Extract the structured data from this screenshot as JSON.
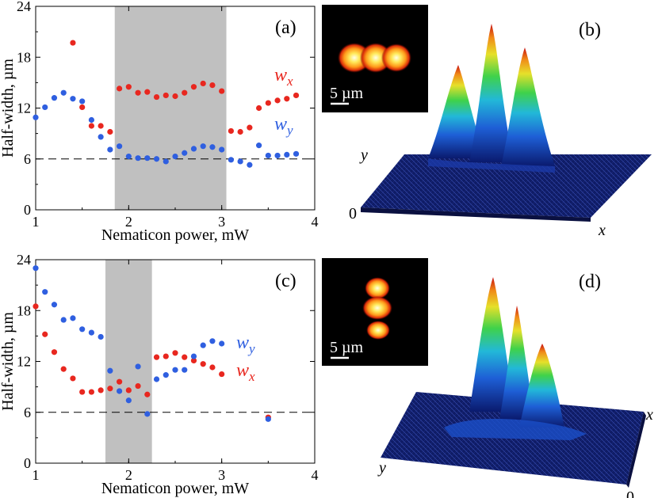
{
  "figure": {
    "panels": [
      "(a)",
      "(b)",
      "(c)",
      "(d)"
    ],
    "scale_bar_label": "5 µm",
    "surface_labels": {
      "b": {
        "x": "x",
        "y": "y",
        "zero": "0"
      },
      "d": {
        "x": "x",
        "y": "y",
        "zero": "0"
      }
    }
  },
  "colors": {
    "wx": "#e8271f",
    "wy": "#2f5fe0",
    "shade": "#c0c0c0",
    "dashed": "#000000"
  },
  "chart_data": [
    {
      "id": "a",
      "type": "scatter",
      "panel_label": "(a)",
      "xlabel": "Nematicon power, mW",
      "ylabel": "Half-width, µm",
      "xlim": [
        1,
        4
      ],
      "ylim": [
        0,
        24
      ],
      "xticks": [
        1,
        2,
        3,
        4
      ],
      "yticks": [
        0,
        6,
        12,
        18,
        24
      ],
      "reference_line_y": 6,
      "shaded_region_x": [
        1.85,
        3.05
      ],
      "series": [
        {
          "name": "wx",
          "label_main": "w",
          "label_sub": "x",
          "color": "#e8271f",
          "x": [
            1.4,
            1.5,
            1.6,
            1.7,
            1.8,
            1.9,
            2.0,
            2.1,
            2.2,
            2.3,
            2.4,
            2.5,
            2.6,
            2.7,
            2.8,
            2.9,
            3.0,
            3.1,
            3.2,
            3.3,
            3.4,
            3.5,
            3.6,
            3.7,
            3.8
          ],
          "y": [
            19.7,
            12.1,
            9.9,
            9.9,
            9.2,
            14.3,
            14.5,
            13.8,
            13.9,
            13.3,
            13.5,
            13.4,
            13.8,
            14.5,
            14.9,
            14.7,
            14.0,
            9.3,
            9.2,
            9.7,
            12.0,
            12.6,
            12.9,
            13.1,
            13.5
          ]
        },
        {
          "name": "wy",
          "label_main": "w",
          "label_sub": "y",
          "color": "#2f5fe0",
          "x": [
            1.0,
            1.1,
            1.2,
            1.3,
            1.4,
            1.5,
            1.6,
            1.7,
            1.8,
            1.9,
            2.0,
            2.1,
            2.2,
            2.3,
            2.4,
            2.5,
            2.6,
            2.7,
            2.8,
            2.9,
            3.0,
            3.1,
            3.2,
            3.3,
            3.4,
            3.5,
            3.6,
            3.7,
            3.8
          ],
          "y": [
            10.9,
            12.1,
            13.2,
            13.8,
            13.1,
            12.8,
            10.6,
            8.6,
            7.1,
            7.5,
            6.3,
            6.1,
            6.1,
            6.0,
            5.7,
            6.3,
            6.7,
            7.2,
            7.5,
            7.4,
            7.1,
            5.9,
            5.7,
            5.3,
            7.6,
            6.4,
            6.4,
            6.5,
            6.6
          ]
        }
      ]
    },
    {
      "id": "c",
      "type": "scatter",
      "panel_label": "(c)",
      "xlabel": "Nematicon power, mW",
      "ylabel": "Half-width, µm",
      "xlim": [
        1,
        4
      ],
      "ylim": [
        0,
        24
      ],
      "xticks": [
        1,
        2,
        3,
        4
      ],
      "yticks": [
        0,
        6,
        12,
        18,
        24
      ],
      "reference_line_y": 6,
      "shaded_region_x": [
        1.75,
        2.25
      ],
      "series": [
        {
          "name": "wx",
          "label_main": "w",
          "label_sub": "x",
          "color": "#e8271f",
          "x": [
            1.0,
            1.1,
            1.2,
            1.3,
            1.4,
            1.5,
            1.6,
            1.7,
            1.8,
            1.9,
            2.0,
            2.1,
            2.2,
            2.3,
            2.4,
            2.5,
            2.6,
            2.7,
            2.8,
            2.9,
            3.0,
            3.5
          ],
          "y": [
            18.5,
            15.2,
            13.1,
            11.1,
            10.0,
            8.4,
            8.4,
            8.6,
            8.8,
            9.6,
            8.6,
            9.1,
            8.1,
            12.5,
            12.6,
            13.0,
            12.5,
            12.1,
            11.7,
            11.3,
            10.5,
            5.4
          ]
        },
        {
          "name": "wy",
          "label_main": "w",
          "label_sub": "y",
          "color": "#2f5fe0",
          "x": [
            1.0,
            1.1,
            1.2,
            1.3,
            1.4,
            1.5,
            1.6,
            1.7,
            1.8,
            1.9,
            2.0,
            2.1,
            2.2,
            2.3,
            2.4,
            2.5,
            2.6,
            2.7,
            2.8,
            2.9,
            3.0,
            3.5
          ],
          "y": [
            23.0,
            20.2,
            18.7,
            16.9,
            17.1,
            15.8,
            15.4,
            14.9,
            10.9,
            8.5,
            7.4,
            11.4,
            5.8,
            9.9,
            10.4,
            11.0,
            11.0,
            12.6,
            13.9,
            14.4,
            14.1,
            5.2
          ]
        }
      ]
    }
  ]
}
